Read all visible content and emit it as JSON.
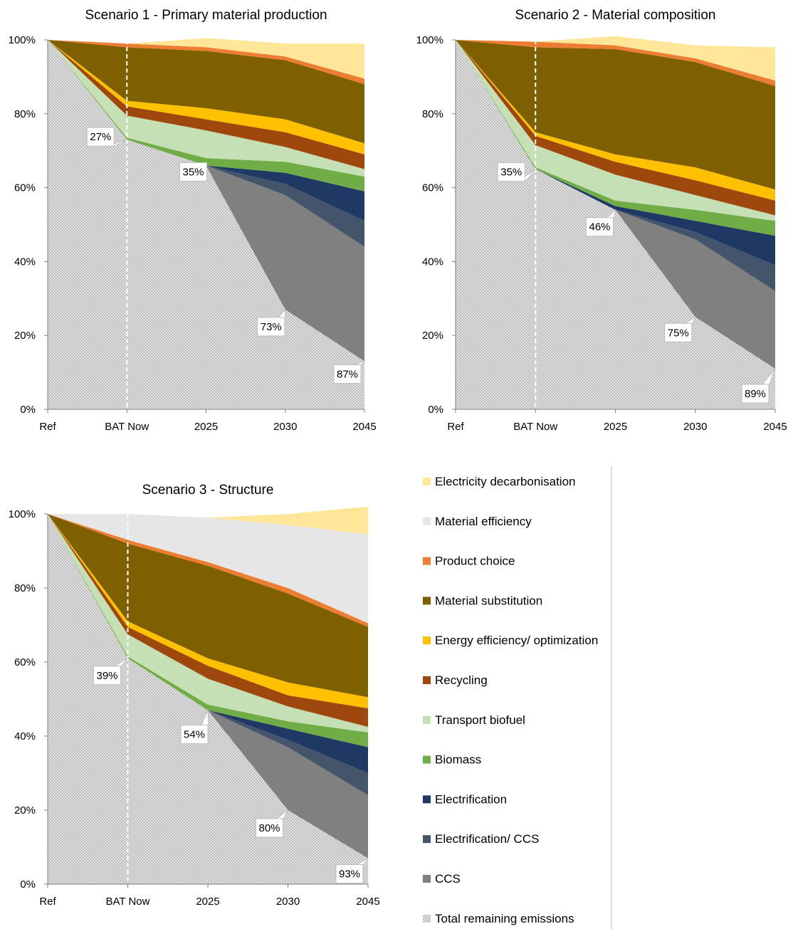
{
  "chart_data": [
    {
      "type": "area",
      "title": "Scenario 1 - Primary material production",
      "categories": [
        "Ref",
        "BAT Now",
        "2025",
        "2030",
        "2045"
      ],
      "ylim": [
        0,
        100
      ],
      "y_ticks": [
        "0%",
        "20%",
        "40%",
        "60%",
        "80%",
        "100%"
      ],
      "series": [
        {
          "name": "Total remaining emissions",
          "values": [
            100,
            73,
            66,
            27,
            13
          ]
        },
        {
          "name": "CCS",
          "values": [
            0,
            0,
            0,
            31,
            31
          ]
        },
        {
          "name": "Electrification/ CCS",
          "values": [
            0,
            0,
            0,
            3,
            7
          ]
        },
        {
          "name": "Electrification",
          "values": [
            0,
            0,
            0,
            3,
            8
          ]
        },
        {
          "name": "Biomass",
          "values": [
            0,
            0.5,
            2,
            3,
            4
          ]
        },
        {
          "name": "Transport biofuel",
          "values": [
            0,
            6,
            7.5,
            4,
            2
          ]
        },
        {
          "name": "Recycling",
          "values": [
            0,
            2.5,
            3,
            4,
            4
          ]
        },
        {
          "name": "Energy efficiency/ optimization",
          "values": [
            0,
            1.5,
            3,
            3.5,
            3
          ]
        },
        {
          "name": "Material substitution",
          "values": [
            0,
            14.5,
            15.5,
            16,
            16
          ]
        },
        {
          "name": "Product choice",
          "values": [
            0,
            1,
            1,
            1,
            1.5
          ]
        },
        {
          "name": "Electricity decarbonisation",
          "values": [
            0,
            0,
            2.5,
            3.5,
            9.5
          ]
        }
      ],
      "reduction_labels": [
        "27%",
        "35%",
        "73%",
        "87%"
      ]
    },
    {
      "type": "area",
      "title": "Scenario 2 - Material composition",
      "categories": [
        "Ref",
        "BAT Now",
        "2025",
        "2030",
        "2045"
      ],
      "ylim": [
        0,
        100
      ],
      "y_ticks": [
        "0%",
        "20%",
        "40%",
        "60%",
        "80%",
        "100%"
      ],
      "series": [
        {
          "name": "Total remaining emissions",
          "values": [
            100,
            65,
            54,
            25,
            11
          ]
        },
        {
          "name": "CCS",
          "values": [
            0,
            0,
            0,
            21,
            21
          ]
        },
        {
          "name": "Electrification/ CCS",
          "values": [
            0,
            0,
            0,
            2,
            7
          ]
        },
        {
          "name": "Electrification",
          "values": [
            0,
            0,
            1,
            3,
            8
          ]
        },
        {
          "name": "Biomass",
          "values": [
            0,
            0.5,
            1.5,
            3,
            4
          ]
        },
        {
          "name": "Transport biofuel",
          "values": [
            0,
            6,
            7,
            4,
            1.5
          ]
        },
        {
          "name": "Recycling",
          "values": [
            0,
            2.5,
            3.5,
            4,
            4
          ]
        },
        {
          "name": "Energy efficiency/ optimization",
          "values": [
            0,
            1,
            2,
            3.5,
            3
          ]
        },
        {
          "name": "Material substitution",
          "values": [
            0,
            23,
            28.5,
            28.5,
            28
          ]
        },
        {
          "name": "Product choice",
          "values": [
            0,
            1.5,
            1,
            1,
            1.5
          ]
        },
        {
          "name": "Electricity decarbonisation",
          "values": [
            0,
            0,
            2.5,
            3.5,
            9
          ]
        }
      ],
      "reduction_labels": [
        "35%",
        "46%",
        "75%",
        "89%"
      ]
    },
    {
      "type": "area",
      "title": "Scenario 3 - Structure",
      "categories": [
        "Ref",
        "BAT Now",
        "2025",
        "2030",
        "2045"
      ],
      "ylim": [
        0,
        100
      ],
      "y_ticks": [
        "0%",
        "20%",
        "40%",
        "60%",
        "80%",
        "100%"
      ],
      "series": [
        {
          "name": "Total remaining emissions",
          "values": [
            100,
            61,
            47,
            20,
            7
          ]
        },
        {
          "name": "CCS",
          "values": [
            0,
            0,
            0,
            17,
            17
          ]
        },
        {
          "name": "Electrification/ CCS",
          "values": [
            0,
            0,
            0,
            2,
            6
          ]
        },
        {
          "name": "Electrification",
          "values": [
            0,
            0,
            0,
            3,
            7
          ]
        },
        {
          "name": "Biomass",
          "values": [
            0,
            0.5,
            1.5,
            2,
            4
          ]
        },
        {
          "name": "Transport biofuel",
          "values": [
            0,
            6,
            7,
            4,
            1.5
          ]
        },
        {
          "name": "Recycling",
          "values": [
            0,
            2,
            3.5,
            3,
            5
          ]
        },
        {
          "name": "Energy efficiency/ optimization",
          "values": [
            0,
            1.5,
            2,
            3.5,
            3
          ]
        },
        {
          "name": "Material substitution",
          "values": [
            0,
            21,
            25,
            24,
            19
          ]
        },
        {
          "name": "Product choice",
          "values": [
            0,
            1,
            1,
            1.5,
            1
          ]
        },
        {
          "name": "Material efficiency",
          "values": [
            0,
            7,
            12,
            17,
            24
          ]
        },
        {
          "name": "Electricity decarbonisation",
          "values": [
            0,
            0,
            0,
            3,
            7.5
          ]
        }
      ],
      "reduction_labels": [
        "39%",
        "54%",
        "80%",
        "93%"
      ]
    }
  ],
  "legend": [
    {
      "name": "Electricity decarbonisation",
      "color": "#ffe699",
      "pattern": false
    },
    {
      "name": "Material efficiency",
      "color": "#e7e6e6",
      "pattern": false
    },
    {
      "name": "Product choice",
      "color": "#ed7d31",
      "pattern": false
    },
    {
      "name": "Material substitution",
      "color": "#7f6000",
      "pattern": false
    },
    {
      "name": "Energy efficiency/ optimization",
      "color": "#ffc000",
      "pattern": false
    },
    {
      "name": "Recycling",
      "color": "#9e480e",
      "pattern": false
    },
    {
      "name": "Transport biofuel",
      "color": "#c5e0b4",
      "pattern": false
    },
    {
      "name": "Biomass",
      "color": "#70ad47",
      "pattern": false
    },
    {
      "name": "Electrification",
      "color": "#1f3864",
      "pattern": false
    },
    {
      "name": "Electrification/ CCS",
      "color": "#44546a",
      "pattern": false
    },
    {
      "name": "CCS",
      "color": "#808080",
      "pattern": false
    },
    {
      "name": "Total remaining emissions",
      "color": "#c9c9c9",
      "pattern": true
    }
  ]
}
